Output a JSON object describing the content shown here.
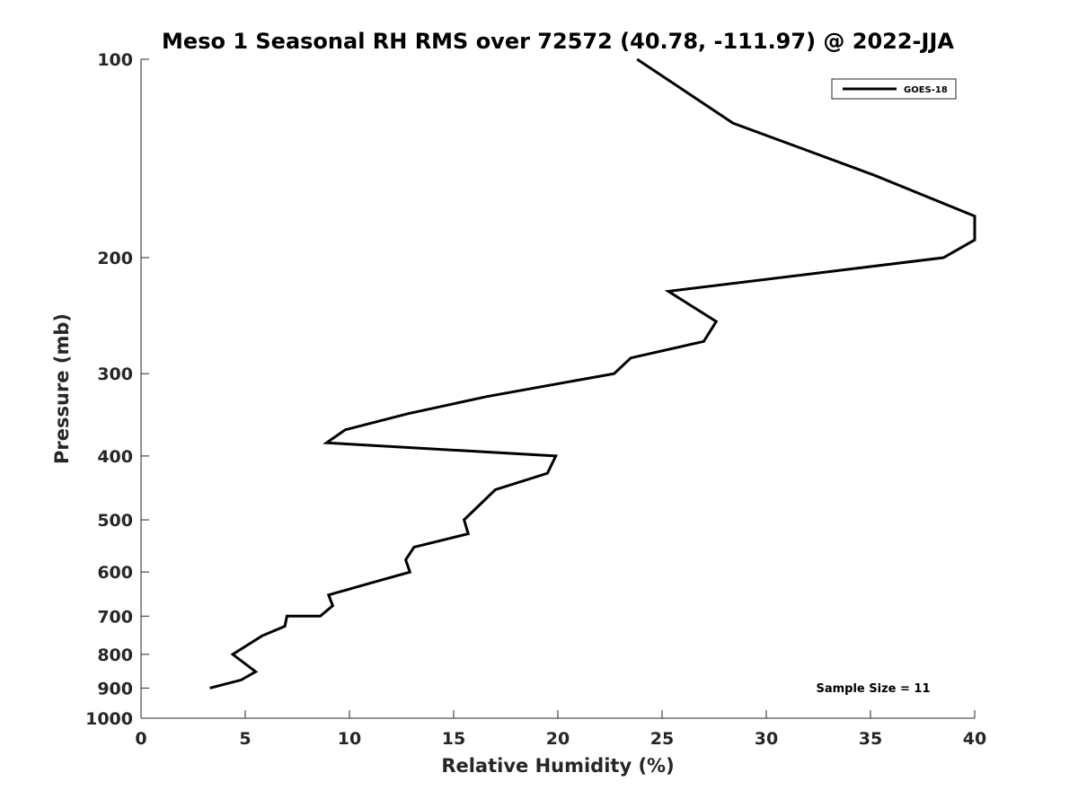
{
  "chart_data": {
    "type": "line",
    "title": "Meso 1 Seasonal RH RMS over 72572 (40.78, -111.97) @ 2022-JJA",
    "xlabel": "Relative Humidity (%)",
    "ylabel": "Pressure (mb)",
    "xlim": [
      0,
      40
    ],
    "ylim": [
      100,
      1000
    ],
    "yscale": "log",
    "y_reversed": true,
    "xticks": [
      0,
      5,
      10,
      15,
      20,
      25,
      30,
      35,
      40
    ],
    "yticks": [
      100,
      200,
      300,
      400,
      500,
      600,
      700,
      800,
      900,
      1000
    ],
    "grid": false,
    "legend_position": "top-right",
    "annotation": "Sample Size = 11",
    "series": [
      {
        "name": "GOES-18",
        "color": "#000000",
        "points": [
          [
            23.8,
            100
          ],
          [
            28.4,
            125
          ],
          [
            35.2,
            150
          ],
          [
            40.0,
            173
          ],
          [
            40.0,
            188
          ],
          [
            38.5,
            200
          ],
          [
            25.3,
            225
          ],
          [
            27.6,
            250
          ],
          [
            27.0,
            268
          ],
          [
            23.5,
            284
          ],
          [
            22.7,
            300
          ],
          [
            16.6,
            325
          ],
          [
            12.8,
            345
          ],
          [
            9.8,
            365
          ],
          [
            8.9,
            382
          ],
          [
            19.9,
            400
          ],
          [
            19.5,
            425
          ],
          [
            17.0,
            450
          ],
          [
            15.5,
            500
          ],
          [
            15.7,
            525
          ],
          [
            13.1,
            550
          ],
          [
            12.7,
            575
          ],
          [
            12.9,
            600
          ],
          [
            10.9,
            625
          ],
          [
            9.0,
            650
          ],
          [
            9.2,
            675
          ],
          [
            8.6,
            700
          ],
          [
            7.0,
            700
          ],
          [
            6.9,
            725
          ],
          [
            5.8,
            750
          ],
          [
            4.4,
            800
          ],
          [
            5.5,
            850
          ],
          [
            4.8,
            875
          ],
          [
            3.3,
            900
          ]
        ]
      }
    ]
  }
}
